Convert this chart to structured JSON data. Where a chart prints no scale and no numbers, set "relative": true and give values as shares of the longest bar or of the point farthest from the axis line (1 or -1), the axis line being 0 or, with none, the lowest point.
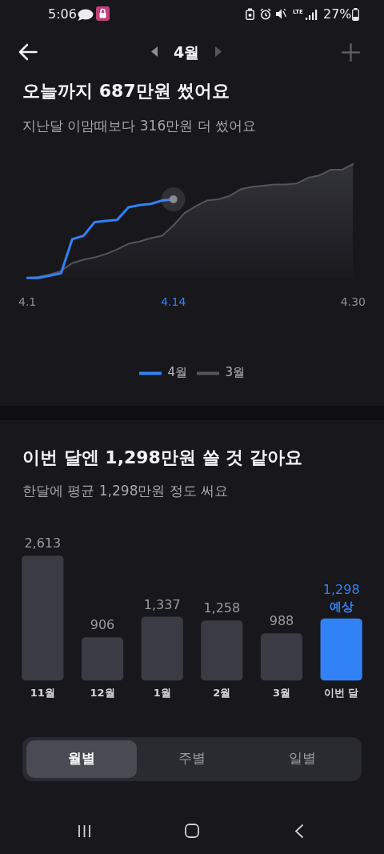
{
  "chart_data": [
    {
      "type": "other",
      "annotations": [
        "5:06",
        "LTE",
        "27%",
        "4월"
      ]
    },
    {
      "type": "line",
      "title": "오늘까지 687만원 썼어요",
      "subtitle": "지난달 이맘때보다 316만원 더 썼어요",
      "relative": true,
      "x": [
        "--04-01",
        "--04-02",
        "--04-03",
        "--04-04",
        "--04-05",
        "--04-06",
        "--04-07",
        "--04-08",
        "--04-09",
        "--04-10",
        "--04-11",
        "--04-12",
        "--04-13",
        "--04-14",
        "--04-15",
        "--04-16",
        "--04-17",
        "--04-18",
        "--04-19",
        "--04-20",
        "--04-21",
        "--04-22",
        "--04-23",
        "--04-24",
        "--04-25",
        "--04-26",
        "--04-27",
        "--04-28",
        "--04-29",
        "--04-30"
      ],
      "xlim": [
        "--04-01",
        "--04-30"
      ],
      "xticks": [
        {
          "value": "--04-01",
          "label": "4.1"
        },
        {
          "value": "--04-14",
          "label": "4.14"
        },
        {
          "value": "--04-30",
          "label": "4.30"
        }
      ],
      "tick_labels": "x",
      "grid": false,
      "legend": "bottom",
      "marker": "none",
      "series": [
        {
          "name": "4월",
          "type": "line",
          "color": "#3182f6",
          "values": [
            0,
            0,
            0.02,
            0.04,
            0.34,
            0.37,
            0.49,
            0.5,
            0.51,
            0.62,
            0.64,
            0.65,
            0.68,
            0.69,
            null,
            null,
            null,
            null,
            null,
            null,
            null,
            null,
            null,
            null,
            null,
            null,
            null,
            null,
            null,
            null
          ]
        },
        {
          "name": "3월",
          "type": "area",
          "color": "#55555e",
          "values": [
            0,
            0.01,
            0.03,
            0.06,
            0.13,
            0.16,
            0.18,
            0.21,
            0.25,
            0.3,
            0.32,
            0.35,
            0.37,
            0.46,
            0.57,
            0.63,
            0.68,
            0.69,
            0.72,
            0.78,
            0.8,
            0.81,
            0.82,
            0.82,
            0.83,
            0.88,
            0.9,
            0.95,
            0.95,
            1
          ]
        },
        {
          "type": "scatter",
          "color": "#8b8b93",
          "marker": "circle",
          "x": [
            "--04-14"
          ],
          "values": [
            0.69
          ]
        }
      ]
    },
    {
      "type": "bar",
      "title": "이번 달엔 1,298만원 쓸 것 같아요",
      "subtitle": "한달에 평균 1,298만원 정도 써요",
      "categories": [
        "11월",
        "12월",
        "1월",
        "2월",
        "3월",
        "이번 달"
      ],
      "values": [
        2613,
        906,
        1337,
        1258,
        988,
        1298
      ],
      "colors": [
        "#3b3b43",
        "#3b3b43",
        "#3b3b43",
        "#3b3b43",
        "#3b3b43",
        "#3182f6"
      ],
      "value_labels": [
        "2,613",
        "906",
        "1,337",
        "1,258",
        "988",
        "1,298"
      ],
      "annotations": [
        {
          "text": "예상",
          "x": "이번 달",
          "y": 1298
        }
      ],
      "tick_labels": "x",
      "grid": false,
      "legend": false
    },
    {
      "type": "other",
      "annotations": [
        "월별",
        "주별",
        "일별"
      ]
    }
  ]
}
